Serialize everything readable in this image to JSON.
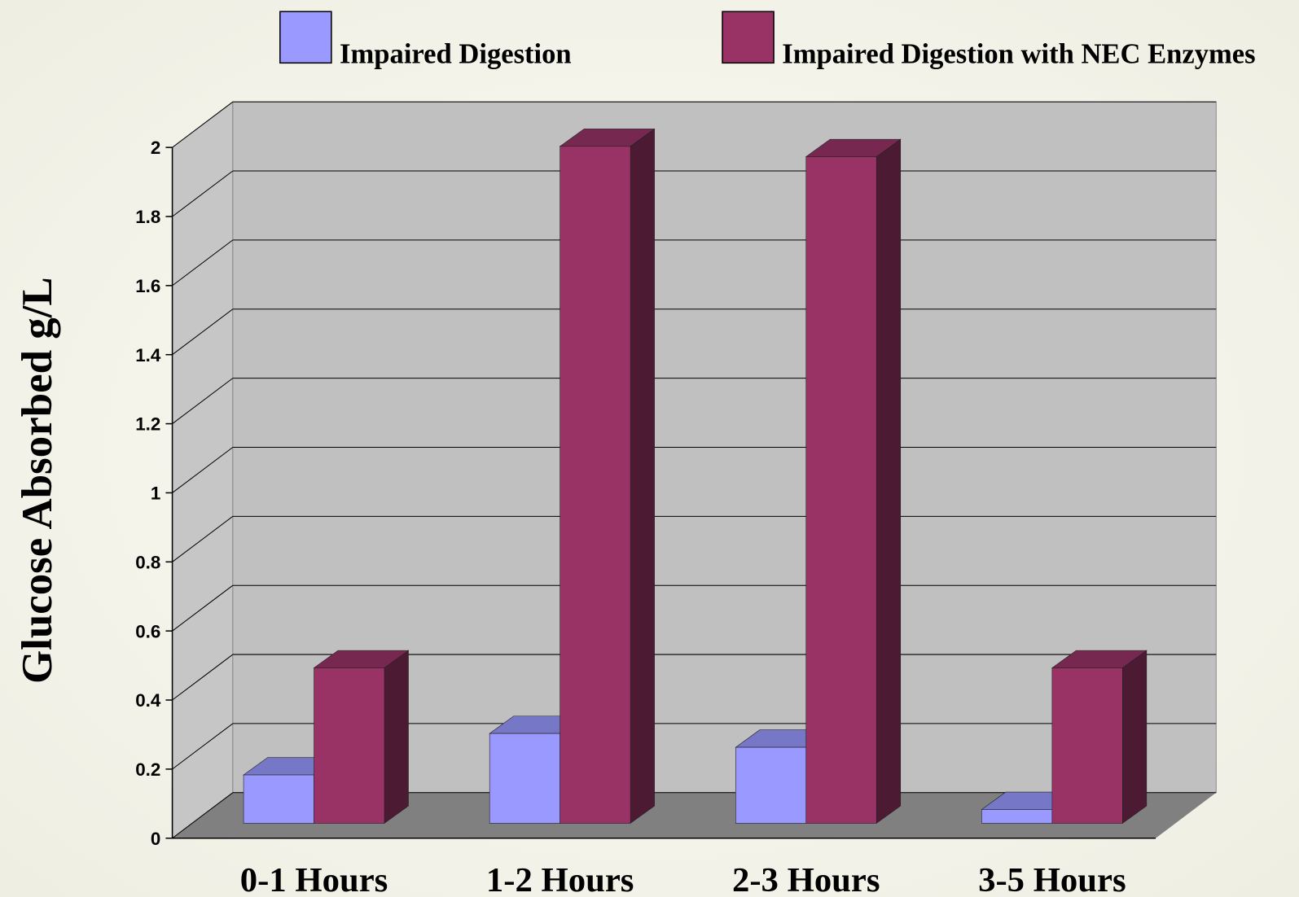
{
  "chart_data": {
    "type": "bar3d",
    "y_label": "Glucose  Absorbed g/L",
    "categories": [
      "0-1 Hours",
      "1-2 Hours",
      "2-3 Hours",
      "3-5 Hours"
    ],
    "series": [
      {
        "name": "Impaired Digestion",
        "color": "#9999ff",
        "values": [
          0.14,
          0.26,
          0.22,
          0.04
        ]
      },
      {
        "name": "Impaired Digestion with NEC Enzymes",
        "color": "#993366",
        "values": [
          0.45,
          1.96,
          1.93,
          0.45
        ]
      }
    ],
    "ylim": [
      0,
      2
    ],
    "yticks": [
      0,
      0.2,
      0.4,
      0.6,
      0.8,
      1,
      1.2,
      1.4,
      1.6,
      1.8,
      2
    ],
    "grid": true
  }
}
